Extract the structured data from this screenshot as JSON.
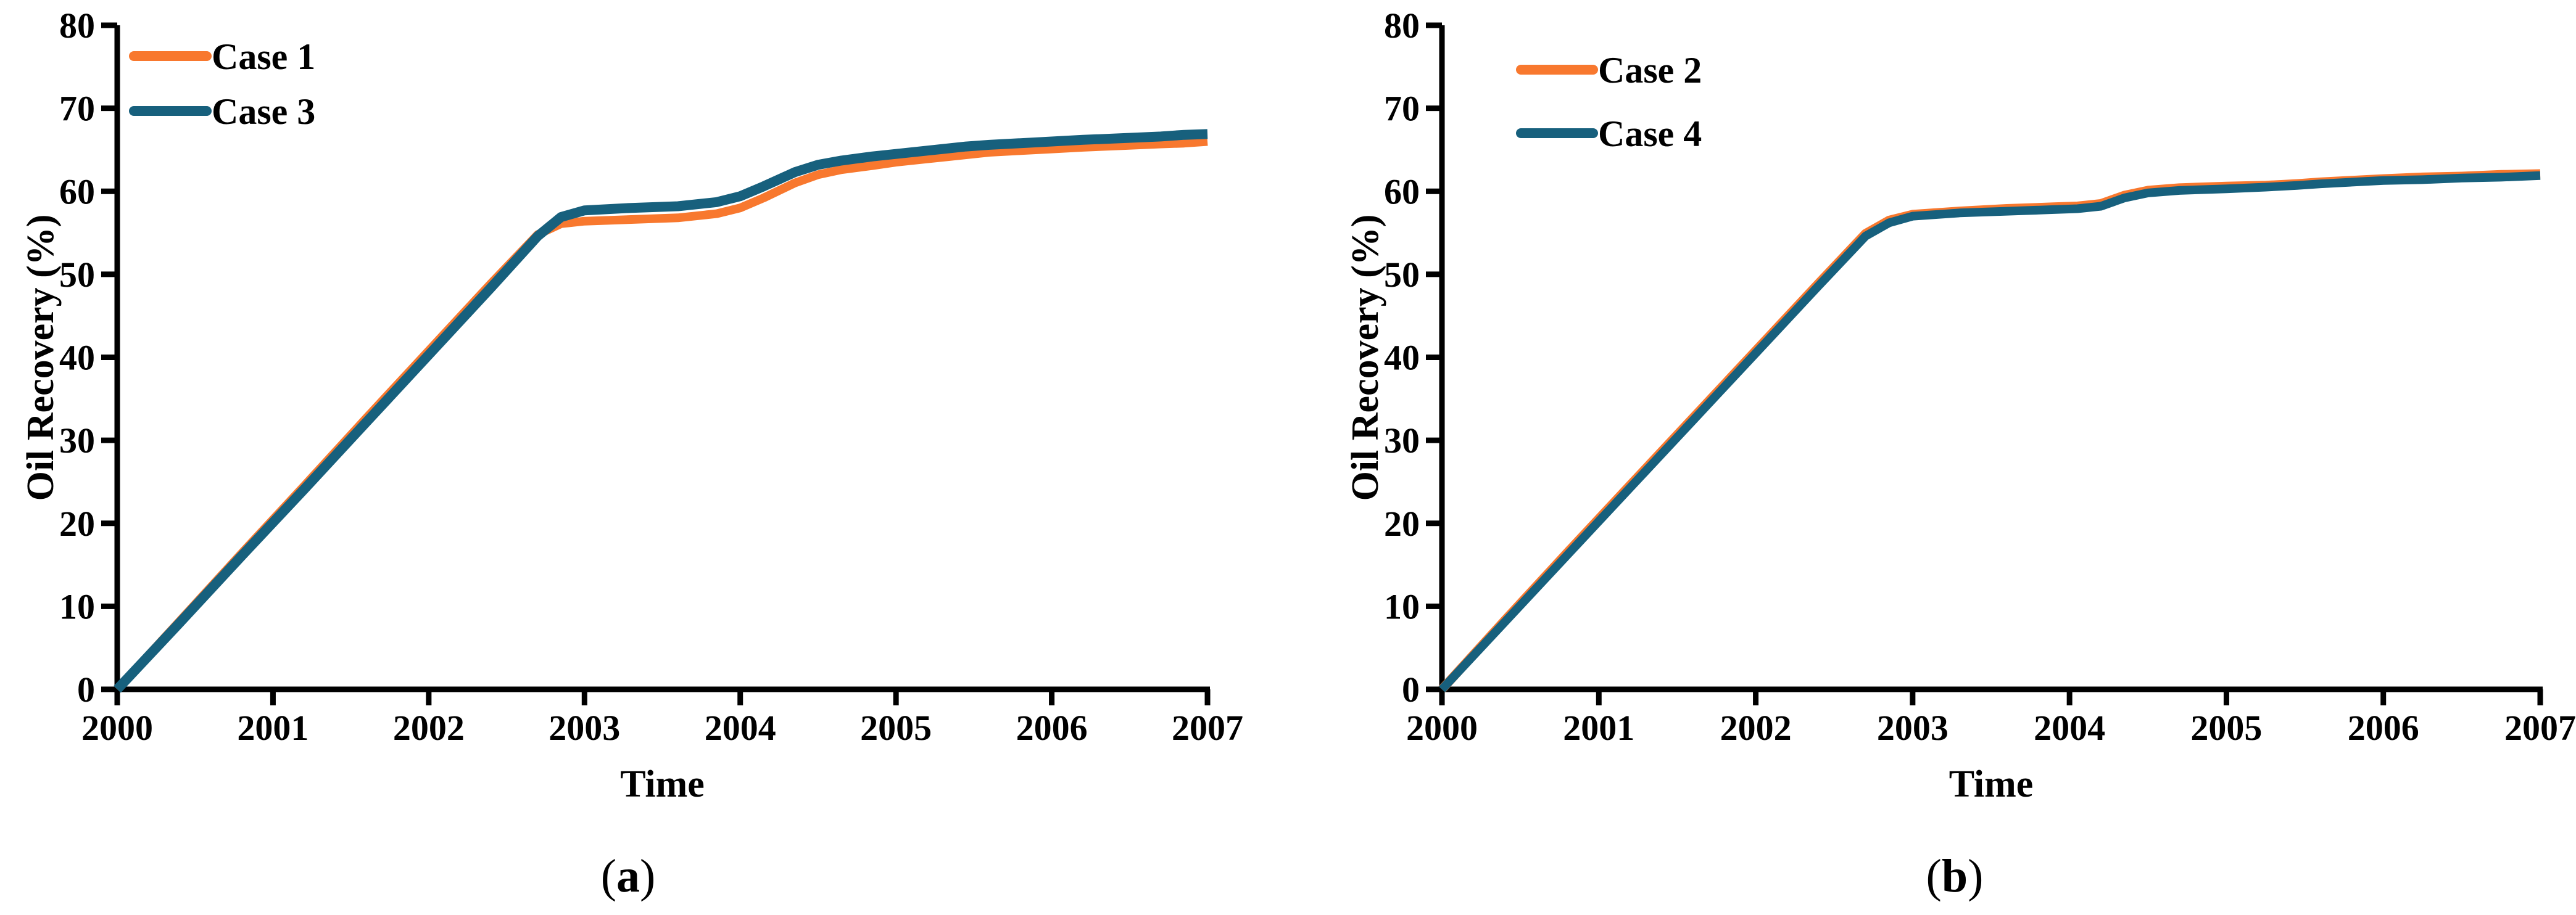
{
  "figure": {
    "background": "#ffffff",
    "text_color": "#000000",
    "captions": [
      {
        "prefix": "(",
        "letter": "a",
        "suffix": ")"
      },
      {
        "prefix": "(",
        "letter": "b",
        "suffix": ")"
      }
    ]
  },
  "chart_data": [
    {
      "type": "line",
      "id": "a",
      "xlabel": "Time",
      "ylabel": "Oil Recovery (%)",
      "xlim": [
        2000,
        2007
      ],
      "ylim": [
        0,
        80
      ],
      "x_ticks": [
        2000,
        2001,
        2002,
        2003,
        2004,
        2005,
        2006,
        2007
      ],
      "y_ticks": [
        0,
        10,
        20,
        30,
        40,
        50,
        60,
        70,
        80
      ],
      "grid": false,
      "legend_position": "upper left",
      "series": [
        {
          "name": "Case 1",
          "color": "#F8782E",
          "points": [
            [
              2000,
              0
            ],
            [
              2000.4,
              8.2
            ],
            [
              2000.8,
              16.4
            ],
            [
              2001.2,
              24.5
            ],
            [
              2001.6,
              32.7
            ],
            [
              2002,
              40.8
            ],
            [
              2002.4,
              48.9
            ],
            [
              2002.7,
              54.8
            ],
            [
              2002.85,
              56.1
            ],
            [
              2003,
              56.4
            ],
            [
              2003.3,
              56.6
            ],
            [
              2003.6,
              56.8
            ],
            [
              2003.85,
              57.3
            ],
            [
              2004,
              58.0
            ],
            [
              2004.15,
              59.2
            ],
            [
              2004.35,
              61.0
            ],
            [
              2004.5,
              62.0
            ],
            [
              2004.65,
              62.6
            ],
            [
              2004.85,
              63.1
            ],
            [
              2005,
              63.5
            ],
            [
              2005.2,
              63.9
            ],
            [
              2005.45,
              64.4
            ],
            [
              2005.6,
              64.7
            ],
            [
              2005.8,
              64.9
            ],
            [
              2006,
              65.1
            ],
            [
              2006.2,
              65.3
            ],
            [
              2006.45,
              65.5
            ],
            [
              2006.7,
              65.7
            ],
            [
              2006.85,
              65.8
            ],
            [
              2007,
              66.0
            ]
          ]
        },
        {
          "name": "Case 3",
          "color": "#17607D",
          "points": [
            [
              2000,
              0
            ],
            [
              2000.4,
              8.0
            ],
            [
              2000.8,
              16.1
            ],
            [
              2001.2,
              24.1
            ],
            [
              2001.6,
              32.2
            ],
            [
              2002,
              40.3
            ],
            [
              2002.4,
              48.4
            ],
            [
              2002.7,
              54.6
            ],
            [
              2002.85,
              56.9
            ],
            [
              2003,
              57.7
            ],
            [
              2003.3,
              58.0
            ],
            [
              2003.6,
              58.2
            ],
            [
              2003.85,
              58.7
            ],
            [
              2004,
              59.4
            ],
            [
              2004.15,
              60.6
            ],
            [
              2004.35,
              62.3
            ],
            [
              2004.5,
              63.2
            ],
            [
              2004.65,
              63.7
            ],
            [
              2004.85,
              64.2
            ],
            [
              2005,
              64.5
            ],
            [
              2005.2,
              64.9
            ],
            [
              2005.45,
              65.4
            ],
            [
              2005.6,
              65.6
            ],
            [
              2005.8,
              65.8
            ],
            [
              2006,
              66.0
            ],
            [
              2006.2,
              66.2
            ],
            [
              2006.45,
              66.4
            ],
            [
              2006.7,
              66.6
            ],
            [
              2006.85,
              66.8
            ],
            [
              2007,
              66.9
            ]
          ]
        }
      ]
    },
    {
      "type": "line",
      "id": "b",
      "xlabel": "Time",
      "ylabel": "Oil Recovery (%)",
      "xlim": [
        2000,
        2007
      ],
      "ylim": [
        0,
        80
      ],
      "x_ticks": [
        2000,
        2001,
        2002,
        2003,
        2004,
        2005,
        2006,
        2007
      ],
      "y_ticks": [
        0,
        10,
        20,
        30,
        40,
        50,
        60,
        70,
        80
      ],
      "grid": false,
      "legend_position": "upper left",
      "series": [
        {
          "name": "Case 2",
          "color": "#F8782E",
          "points": [
            [
              2000,
              0
            ],
            [
              2000.4,
              8.3
            ],
            [
              2000.8,
              16.5
            ],
            [
              2001.2,
              24.6
            ],
            [
              2001.6,
              32.7
            ],
            [
              2002,
              40.8
            ],
            [
              2002.4,
              48.9
            ],
            [
              2002.7,
              54.9
            ],
            [
              2002.85,
              56.5
            ],
            [
              2003,
              57.2
            ],
            [
              2003.3,
              57.6
            ],
            [
              2003.6,
              57.9
            ],
            [
              2003.9,
              58.1
            ],
            [
              2004.05,
              58.2
            ],
            [
              2004.2,
              58.5
            ],
            [
              2004.35,
              59.5
            ],
            [
              2004.5,
              60.1
            ],
            [
              2004.7,
              60.4
            ],
            [
              2005,
              60.6
            ],
            [
              2005.25,
              60.7
            ],
            [
              2005.45,
              60.9
            ],
            [
              2005.6,
              61.1
            ],
            [
              2005.8,
              61.3
            ],
            [
              2006,
              61.5
            ],
            [
              2006.25,
              61.7
            ],
            [
              2006.5,
              61.8
            ],
            [
              2006.75,
              62.0
            ],
            [
              2007,
              62.1
            ]
          ]
        },
        {
          "name": "Case 4",
          "color": "#17607D",
          "points": [
            [
              2000,
              0
            ],
            [
              2000.4,
              8.1
            ],
            [
              2000.8,
              16.2
            ],
            [
              2001.2,
              24.3
            ],
            [
              2001.6,
              32.4
            ],
            [
              2002,
              40.5
            ],
            [
              2002.4,
              48.6
            ],
            [
              2002.7,
              54.6
            ],
            [
              2002.85,
              56.2
            ],
            [
              2003,
              57.0
            ],
            [
              2003.3,
              57.4
            ],
            [
              2003.6,
              57.6
            ],
            [
              2003.9,
              57.8
            ],
            [
              2004.05,
              57.9
            ],
            [
              2004.2,
              58.2
            ],
            [
              2004.35,
              59.2
            ],
            [
              2004.5,
              59.8
            ],
            [
              2004.7,
              60.1
            ],
            [
              2005,
              60.3
            ],
            [
              2005.25,
              60.5
            ],
            [
              2005.45,
              60.7
            ],
            [
              2005.6,
              60.9
            ],
            [
              2005.8,
              61.1
            ],
            [
              2006,
              61.3
            ],
            [
              2006.25,
              61.4
            ],
            [
              2006.5,
              61.6
            ],
            [
              2006.75,
              61.7
            ],
            [
              2007,
              61.9
            ]
          ]
        }
      ]
    }
  ]
}
